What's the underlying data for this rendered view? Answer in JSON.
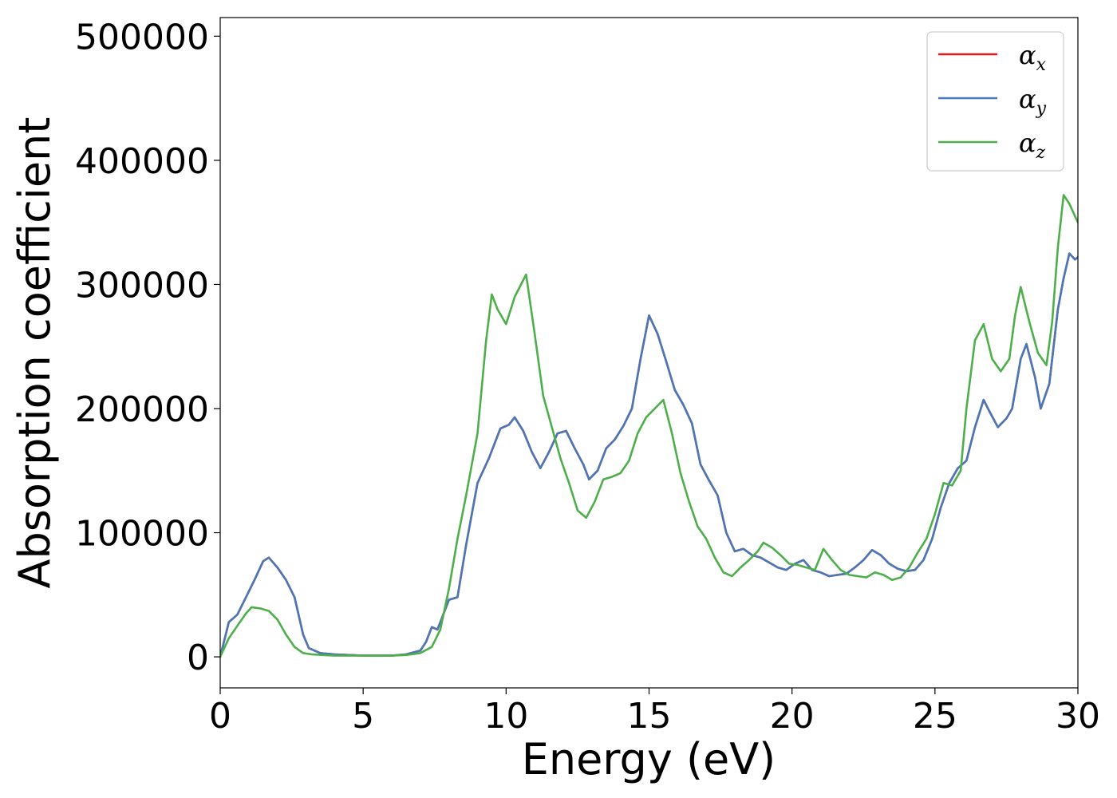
{
  "chart_data": {
    "type": "line",
    "title": "",
    "xlabel": "Energy (eV)",
    "ylabel": "Absorption coefficient",
    "xlim": [
      0,
      30
    ],
    "ylim": [
      -25000,
      515000
    ],
    "xticks": [
      0,
      5,
      10,
      15,
      20,
      25,
      30
    ],
    "yticks": [
      0,
      100000,
      200000,
      300000,
      400000,
      500000
    ],
    "xtick_labels": [
      "0",
      "5",
      "10",
      "15",
      "20",
      "25",
      "30"
    ],
    "ytick_labels": [
      "0",
      "100000",
      "200000",
      "300000",
      "400000",
      "500000"
    ],
    "grid": false,
    "legend_position": "top-right",
    "series": [
      {
        "name": "αx",
        "symbol": "α",
        "subscript": "x",
        "color": "#e41a1c",
        "x": [
          0,
          0.3,
          0.6,
          0.9,
          1.2,
          1.5,
          1.7,
          2.0,
          2.3,
          2.6,
          2.9,
          3.1,
          3.5,
          4,
          5,
          6,
          6.5,
          7.0,
          7.2,
          7.4,
          7.6,
          7.8,
          8.0,
          8.3,
          8.6,
          9.0,
          9.4,
          9.8,
          10.1,
          10.3,
          10.6,
          10.9,
          11.2,
          11.5,
          11.8,
          12.1,
          12.4,
          12.7,
          12.9,
          13.2,
          13.5,
          13.8,
          14.1,
          14.4,
          14.7,
          15.0,
          15.3,
          15.6,
          15.9,
          16.2,
          16.5,
          16.8,
          17.1,
          17.4,
          17.7,
          18.0,
          18.3,
          18.6,
          18.9,
          19.2,
          19.5,
          19.8,
          20.1,
          20.4,
          20.7,
          21.0,
          21.3,
          21.6,
          21.9,
          22.2,
          22.5,
          22.8,
          23.1,
          23.4,
          23.7,
          24.0,
          24.3,
          24.6,
          24.9,
          25.2,
          25.5,
          25.8,
          26.1,
          26.4,
          26.7,
          26.9,
          27.2,
          27.5,
          27.7,
          28.0,
          28.2,
          28.5,
          28.7,
          29.0,
          29.3,
          29.5,
          29.7,
          29.9,
          30.0
        ],
        "y": [
          0,
          28000,
          34000,
          48000,
          62000,
          77000,
          80000,
          72000,
          62000,
          48000,
          18000,
          7000,
          3000,
          2000,
          1000,
          1000,
          2000,
          5000,
          12000,
          24000,
          22000,
          34000,
          46000,
          48000,
          90000,
          140000,
          160000,
          184000,
          187000,
          193000,
          182000,
          165000,
          152000,
          165000,
          180000,
          182000,
          168000,
          155000,
          143000,
          150000,
          168000,
          175000,
          186000,
          200000,
          240000,
          275000,
          260000,
          238000,
          215000,
          203000,
          188000,
          155000,
          142000,
          130000,
          100000,
          85000,
          87000,
          82000,
          80000,
          76000,
          72000,
          70000,
          75000,
          78000,
          70000,
          68000,
          65000,
          66000,
          67000,
          72000,
          78000,
          86000,
          82000,
          75000,
          71000,
          69000,
          70000,
          78000,
          95000,
          120000,
          140000,
          152000,
          158000,
          185000,
          207000,
          198000,
          185000,
          192000,
          200000,
          240000,
          252000,
          225000,
          200000,
          220000,
          280000,
          305000,
          325000,
          320000,
          322000
        ]
      },
      {
        "name": "αy",
        "symbol": "α",
        "subscript": "y",
        "color": "#4878b8",
        "x": [
          0,
          0.3,
          0.6,
          0.9,
          1.2,
          1.5,
          1.7,
          2.0,
          2.3,
          2.6,
          2.9,
          3.1,
          3.5,
          4,
          5,
          6,
          6.5,
          7.0,
          7.2,
          7.4,
          7.6,
          7.8,
          8.0,
          8.3,
          8.6,
          9.0,
          9.4,
          9.8,
          10.1,
          10.3,
          10.6,
          10.9,
          11.2,
          11.5,
          11.8,
          12.1,
          12.4,
          12.7,
          12.9,
          13.2,
          13.5,
          13.8,
          14.1,
          14.4,
          14.7,
          15.0,
          15.3,
          15.6,
          15.9,
          16.2,
          16.5,
          16.8,
          17.1,
          17.4,
          17.7,
          18.0,
          18.3,
          18.6,
          18.9,
          19.2,
          19.5,
          19.8,
          20.1,
          20.4,
          20.7,
          21.0,
          21.3,
          21.6,
          21.9,
          22.2,
          22.5,
          22.8,
          23.1,
          23.4,
          23.7,
          24.0,
          24.3,
          24.6,
          24.9,
          25.2,
          25.5,
          25.8,
          26.1,
          26.4,
          26.7,
          26.9,
          27.2,
          27.5,
          27.7,
          28.0,
          28.2,
          28.5,
          28.7,
          29.0,
          29.3,
          29.5,
          29.7,
          29.9,
          30.0
        ],
        "y": [
          0,
          28000,
          34000,
          48000,
          62000,
          77000,
          80000,
          72000,
          62000,
          48000,
          18000,
          7000,
          3000,
          2000,
          1000,
          1000,
          2000,
          5000,
          12000,
          24000,
          22000,
          34000,
          46000,
          48000,
          90000,
          140000,
          160000,
          184000,
          187000,
          193000,
          182000,
          165000,
          152000,
          165000,
          180000,
          182000,
          168000,
          155000,
          143000,
          150000,
          168000,
          175000,
          186000,
          200000,
          240000,
          275000,
          260000,
          238000,
          215000,
          203000,
          188000,
          155000,
          142000,
          130000,
          100000,
          85000,
          87000,
          82000,
          80000,
          76000,
          72000,
          70000,
          75000,
          78000,
          70000,
          68000,
          65000,
          66000,
          67000,
          72000,
          78000,
          86000,
          82000,
          75000,
          71000,
          69000,
          70000,
          78000,
          95000,
          120000,
          140000,
          152000,
          158000,
          185000,
          207000,
          198000,
          185000,
          192000,
          200000,
          240000,
          252000,
          225000,
          200000,
          220000,
          280000,
          305000,
          325000,
          320000,
          322000
        ]
      },
      {
        "name": "αz",
        "symbol": "α",
        "subscript": "z",
        "color": "#4daf4a",
        "x": [
          0,
          0.3,
          0.6,
          0.9,
          1.1,
          1.4,
          1.7,
          2.0,
          2.3,
          2.6,
          2.9,
          3.2,
          3.6,
          4,
          5,
          6,
          6.5,
          7.0,
          7.4,
          7.7,
          8.0,
          8.3,
          8.6,
          9.0,
          9.3,
          9.5,
          9.7,
          10.0,
          10.3,
          10.7,
          11.0,
          11.3,
          11.6,
          11.9,
          12.2,
          12.5,
          12.8,
          13.1,
          13.4,
          13.7,
          14.0,
          14.3,
          14.6,
          14.9,
          15.2,
          15.5,
          15.8,
          16.1,
          16.4,
          16.7,
          17.0,
          17.3,
          17.6,
          17.9,
          18.2,
          18.5,
          18.8,
          19.0,
          19.3,
          19.6,
          19.9,
          20.2,
          20.5,
          20.8,
          21.1,
          21.4,
          21.7,
          22.0,
          22.3,
          22.6,
          22.9,
          23.2,
          23.5,
          23.8,
          24.1,
          24.4,
          24.7,
          25.0,
          25.3,
          25.6,
          25.9,
          26.1,
          26.4,
          26.7,
          27.0,
          27.3,
          27.6,
          27.8,
          28.0,
          28.3,
          28.6,
          28.9,
          29.1,
          29.3,
          29.5,
          29.7,
          29.9,
          30.0
        ],
        "y": [
          0,
          15000,
          25000,
          35000,
          40000,
          39000,
          37000,
          30000,
          18000,
          8000,
          3000,
          2000,
          1500,
          1000,
          1000,
          1000,
          1500,
          3000,
          8000,
          22000,
          55000,
          95000,
          130000,
          180000,
          255000,
          292000,
          280000,
          268000,
          290000,
          308000,
          260000,
          210000,
          185000,
          160000,
          140000,
          118000,
          112000,
          125000,
          143000,
          145000,
          148000,
          158000,
          180000,
          193000,
          200000,
          207000,
          180000,
          148000,
          125000,
          105000,
          95000,
          80000,
          68000,
          65000,
          72000,
          78000,
          85000,
          92000,
          88000,
          82000,
          75000,
          74000,
          72000,
          70000,
          87000,
          78000,
          70000,
          66000,
          65000,
          64000,
          68000,
          66000,
          62000,
          64000,
          72000,
          84000,
          95000,
          115000,
          140000,
          138000,
          150000,
          200000,
          255000,
          268000,
          240000,
          230000,
          240000,
          275000,
          298000,
          270000,
          245000,
          235000,
          270000,
          330000,
          372000,
          365000,
          355000,
          350000
        ]
      }
    ]
  }
}
